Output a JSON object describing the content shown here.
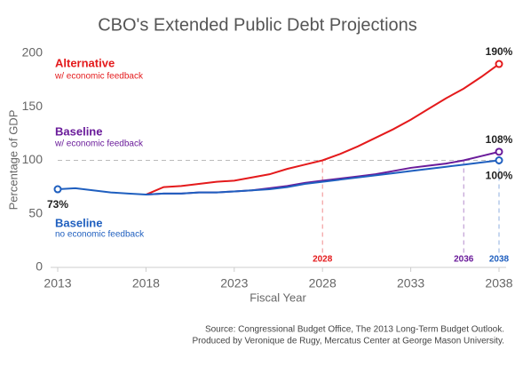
{
  "chart_data": {
    "type": "line",
    "title": "CBO's Extended Public Debt Projections",
    "x_label": "Fiscal Year",
    "y_label": "Percentage of GDP",
    "source": [
      "Source: Congressional Budget Office, The 2013 Long-Term Budget Outlook.",
      "Produced by Veronique de Rugy, Mercatus Center at George Mason University."
    ],
    "x": [
      2013,
      2014,
      2015,
      2016,
      2017,
      2018,
      2019,
      2020,
      2021,
      2022,
      2023,
      2024,
      2025,
      2026,
      2027,
      2028,
      2029,
      2030,
      2031,
      2032,
      2033,
      2034,
      2035,
      2036,
      2037,
      2038
    ],
    "xlim": [
      2013,
      2038
    ],
    "xticks": [
      2013,
      2018,
      2023,
      2028,
      2033,
      2038
    ],
    "ylim": [
      0,
      200
    ],
    "yticks": [
      0,
      50,
      100,
      150,
      200
    ],
    "hline": 100,
    "series": [
      {
        "name": "Alternative",
        "subtitle": "w/ economic feedback",
        "color": "#e41a1c",
        "values": [
          null,
          null,
          null,
          null,
          null,
          68,
          75,
          76,
          78,
          80,
          81,
          84,
          87,
          92,
          96,
          100,
          106,
          113,
          121,
          129,
          138,
          148,
          158,
          167,
          178,
          190
        ],
        "value_labels": [
          null,
          null,
          null,
          null,
          null,
          null,
          null,
          null,
          null,
          null,
          null,
          null,
          null,
          null,
          null,
          null,
          null,
          null,
          null,
          null,
          null,
          null,
          null,
          null,
          null,
          "190%"
        ]
      },
      {
        "name": "Baseline",
        "subtitle": "w/ economic feedback",
        "color": "#6a1b9a",
        "values": [
          null,
          null,
          null,
          null,
          null,
          68,
          69,
          69,
          70,
          70,
          71,
          72,
          74,
          76,
          79,
          81,
          83,
          85,
          87,
          90,
          93,
          95,
          97,
          100,
          104,
          108
        ],
        "value_labels": [
          null,
          null,
          null,
          null,
          null,
          null,
          null,
          null,
          null,
          null,
          null,
          null,
          null,
          null,
          null,
          null,
          null,
          null,
          null,
          null,
          null,
          null,
          null,
          null,
          null,
          "108%"
        ]
      },
      {
        "name": "Baseline",
        "subtitle": "no economic feedback",
        "color": "#1f5fbf",
        "values": [
          73,
          74,
          72,
          70,
          69,
          68,
          69,
          69,
          70,
          70,
          71,
          72,
          73,
          75,
          78,
          80,
          82,
          84,
          86,
          88,
          90,
          92,
          94,
          96,
          98,
          100
        ],
        "value_labels": [
          "73%",
          null,
          null,
          null,
          null,
          null,
          null,
          null,
          null,
          null,
          null,
          null,
          null,
          null,
          null,
          null,
          null,
          null,
          null,
          null,
          null,
          null,
          null,
          null,
          null,
          "100%"
        ]
      }
    ],
    "markers": [
      {
        "x": 2028,
        "color": "#e41a1c"
      },
      {
        "x": 2036,
        "color": "#6a1b9a"
      },
      {
        "x": 2038,
        "color": "#1f5fbf"
      }
    ]
  }
}
